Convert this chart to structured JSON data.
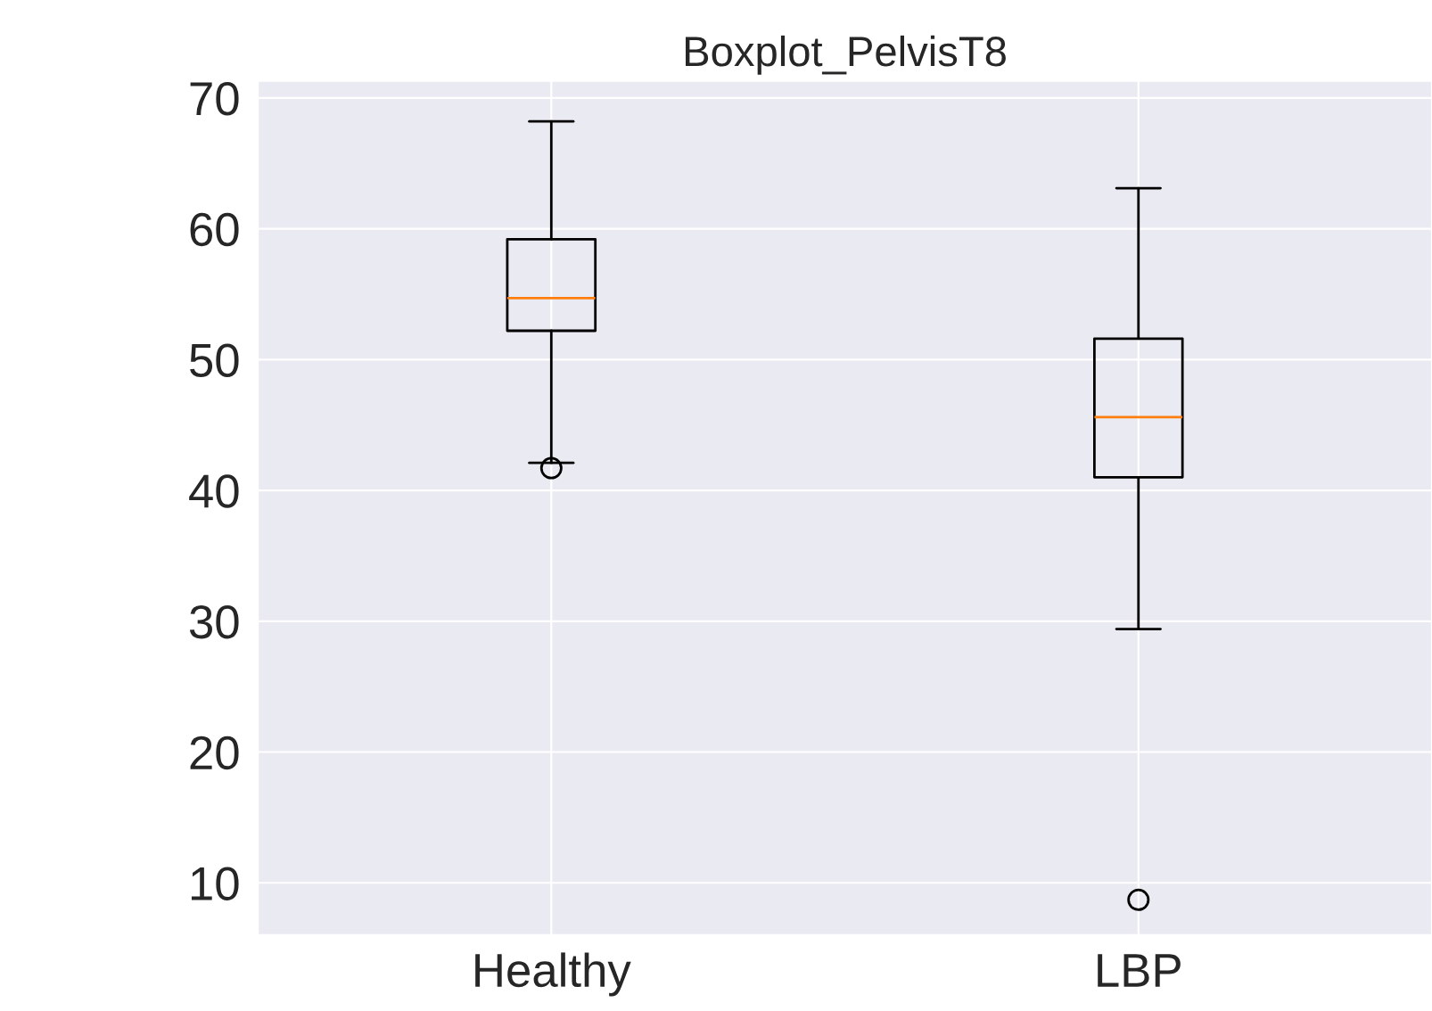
{
  "chart_data": {
    "type": "box",
    "title": "Boxplot_PelvisT8",
    "categories": [
      "Healthy",
      "LBP"
    ],
    "boxes": [
      {
        "low": 42.1,
        "q1": 52.2,
        "median": 54.7,
        "q3": 59.2,
        "high": 68.2,
        "outliers": [
          41.7
        ]
      },
      {
        "low": 29.4,
        "q1": 41.0,
        "median": 45.6,
        "q3": 51.6,
        "high": 63.1,
        "outliers": [
          8.7
        ]
      }
    ],
    "ylim": [
      6,
      71.3
    ],
    "yticks": [
      10,
      20,
      30,
      40,
      50,
      60,
      70
    ],
    "grid": true
  }
}
